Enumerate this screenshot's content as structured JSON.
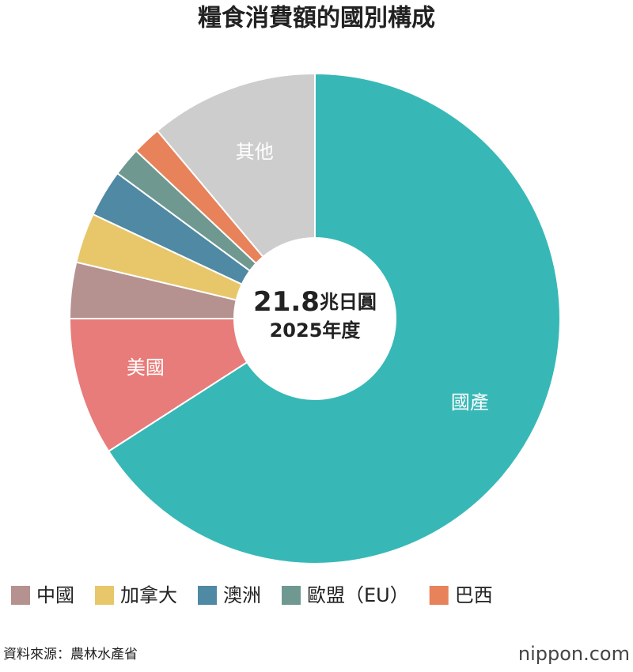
{
  "chart_data": {
    "type": "pie",
    "title": "糧食消費額的國別構成",
    "center_label": [
      "21.8兆日圓",
      "2025年度"
    ],
    "categories": [
      "國產",
      "美國",
      "中國",
      "加拿大",
      "澳洲",
      "歐盟（EU）",
      "巴西",
      "其他"
    ],
    "values": [
      65.9,
      9.1,
      3.7,
      3.3,
      3.1,
      1.9,
      1.9,
      11.1
    ],
    "colors": [
      "#37b8b7",
      "#e87c7a",
      "#b5928f",
      "#e8c76b",
      "#4f89a3",
      "#6f9990",
      "#e8825a",
      "#cdcdcd"
    ],
    "source": "資料來源：農林水產省",
    "brand": "nippon.com"
  }
}
